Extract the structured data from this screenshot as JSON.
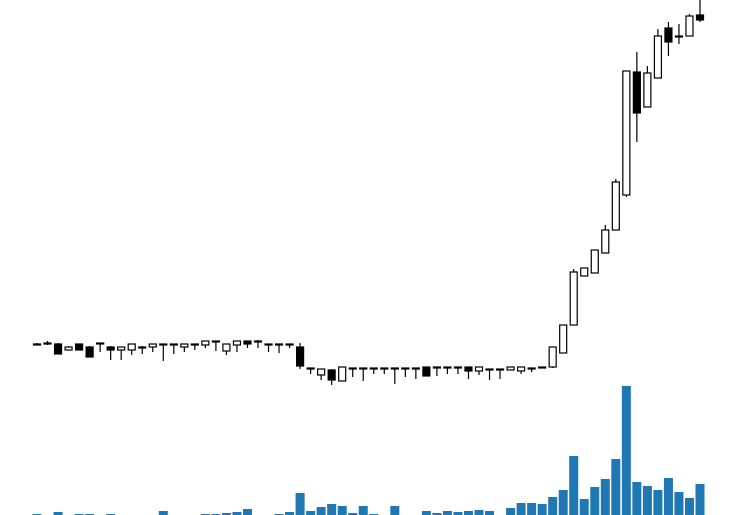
{
  "chart_data": [
    {
      "type": "candlestick",
      "open": [
        56,
        57,
        56,
        50,
        56,
        53,
        57,
        53,
        50,
        50,
        53,
        53,
        56,
        56,
        53,
        56,
        55,
        59,
        49,
        55,
        59,
        59,
        56,
        56,
        56,
        53,
        32,
        25,
        30,
        19,
        32,
        32,
        32,
        32,
        32,
        32,
        32,
        33,
        33,
        33,
        33,
        33,
        29,
        31,
        31,
        30,
        29,
        32,
        33,
        33,
        47,
        75,
        124,
        127,
        147,
        170,
        205,
        328,
        293,
        322,
        372,
        364,
        364,
        385
      ],
      "high": [
        57,
        59,
        57,
        54,
        56,
        54,
        57,
        54,
        53,
        56,
        54,
        56,
        56,
        56,
        56,
        56,
        59,
        59,
        56,
        59,
        59,
        60,
        56,
        56,
        56,
        57,
        32,
        31,
        31,
        33,
        32,
        32,
        32,
        32,
        32,
        32,
        32,
        33,
        33,
        33,
        33,
        33,
        33,
        31,
        31,
        33,
        33,
        32,
        33,
        53,
        75,
        131,
        132,
        150,
        175,
        221,
        329,
        348,
        334,
        371,
        378,
        376,
        386,
        400
      ],
      "low": [
        55,
        55,
        46,
        50,
        50,
        43,
        48,
        40,
        40,
        45,
        46,
        48,
        39,
        46,
        48,
        50,
        52,
        49,
        45,
        48,
        52,
        52,
        48,
        47,
        52,
        31,
        26,
        20,
        15,
        19,
        23,
        19,
        26,
        26,
        16,
        23,
        21,
        24,
        24,
        26,
        26,
        21,
        25,
        20,
        21,
        30,
        26,
        28,
        33,
        32,
        47,
        75,
        124,
        127,
        147,
        170,
        203,
        258,
        293,
        322,
        344,
        356,
        364,
        378
      ],
      "close": [
        56,
        57,
        46,
        53,
        50,
        43,
        57,
        50,
        53,
        56,
        53,
        56,
        56,
        56,
        56,
        56,
        59,
        59,
        56,
        59,
        56,
        59,
        56,
        56,
        56,
        34,
        32,
        31,
        20,
        33,
        32,
        32,
        32,
        32,
        32,
        32,
        32,
        24,
        33,
        33,
        33,
        29,
        33,
        31,
        31,
        33,
        33,
        32,
        33,
        53,
        75,
        128,
        132,
        150,
        170,
        218,
        329,
        287,
        327,
        364,
        358,
        364,
        384,
        380
      ],
      "up_color": "#ffffff",
      "down_color": "#000000",
      "edge_color": "#000000",
      "ylim": [
        0,
        400
      ]
    },
    {
      "type": "bar",
      "values": [
        1,
        0,
        3,
        0,
        1,
        1,
        0,
        1,
        0,
        0,
        0,
        0,
        4,
        0,
        0,
        0,
        1,
        1,
        2,
        3,
        6,
        0,
        0,
        1,
        3,
        22,
        4,
        8,
        11,
        9,
        2,
        9,
        1,
        0,
        9,
        0,
        0,
        4,
        2,
        4,
        3,
        4,
        5,
        4,
        0,
        7,
        12,
        12,
        11,
        18,
        25,
        59,
        16,
        28,
        36,
        56,
        129,
        33,
        29,
        25,
        37,
        23,
        17,
        31
      ],
      "color": "#1f77b4",
      "ylim": [
        0,
        130
      ]
    }
  ]
}
